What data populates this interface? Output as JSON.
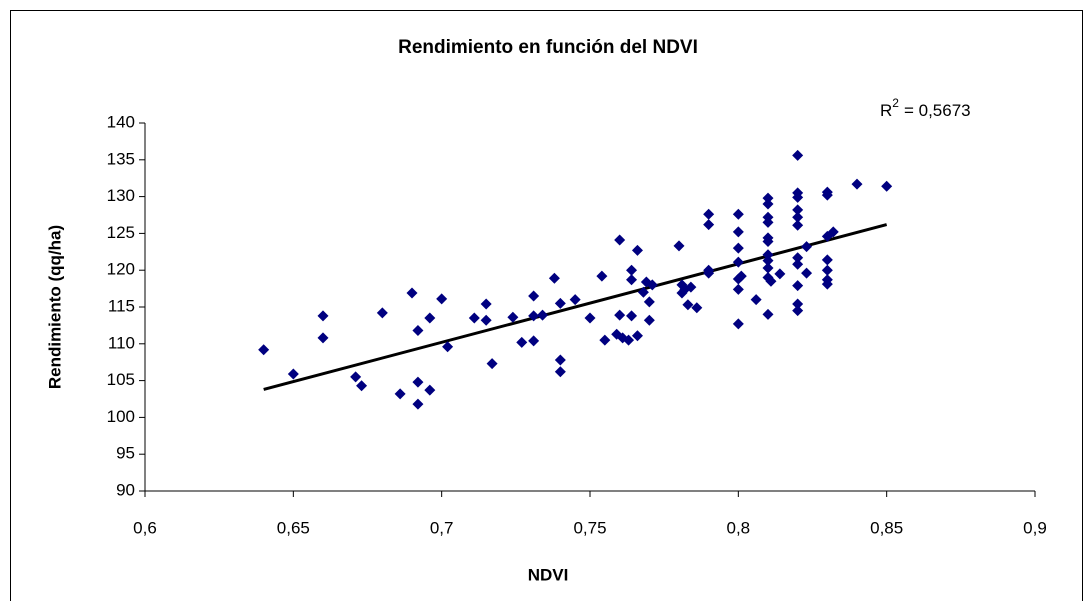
{
  "chart_data": {
    "type": "scatter",
    "title": "Rendimiento en función del NDVI",
    "xlabel": "NDVI",
    "ylabel": "Rendimiento (qq/ha)",
    "annotation": {
      "text": "R",
      "superscript": "2",
      "rest": "= 0,5673"
    },
    "xlim": [
      0.6,
      0.9
    ],
    "xticks": [
      {
        "value": 0.6,
        "label": "0,6"
      },
      {
        "value": 0.65,
        "label": "0,65"
      },
      {
        "value": 0.7,
        "label": "0,7"
      },
      {
        "value": 0.75,
        "label": "0,75"
      },
      {
        "value": 0.8,
        "label": "0,8"
      },
      {
        "value": 0.85,
        "label": "0,85"
      },
      {
        "value": 0.9,
        "label": "0,9"
      }
    ],
    "ylim": [
      90,
      140
    ],
    "yticks": [
      90,
      95,
      100,
      105,
      110,
      115,
      120,
      125,
      130,
      135,
      140
    ],
    "color": "#000080",
    "x": [
      0.64,
      0.65,
      0.66,
      0.66,
      0.671,
      0.673,
      0.68,
      0.686,
      0.69,
      0.692,
      0.692,
      0.692,
      0.696,
      0.696,
      0.7,
      0.702,
      0.711,
      0.715,
      0.715,
      0.717,
      0.724,
      0.727,
      0.731,
      0.731,
      0.731,
      0.734,
      0.738,
      0.74,
      0.74,
      0.74,
      0.745,
      0.75,
      0.754,
      0.755,
      0.759,
      0.76,
      0.76,
      0.761,
      0.763,
      0.764,
      0.764,
      0.764,
      0.766,
      0.766,
      0.768,
      0.769,
      0.77,
      0.77,
      0.771,
      0.78,
      0.781,
      0.781,
      0.782,
      0.783,
      0.784,
      0.786,
      0.79,
      0.79,
      0.79,
      0.79,
      0.8,
      0.8,
      0.8,
      0.8,
      0.8,
      0.801,
      0.8,
      0.8,
      0.806,
      0.81,
      0.81,
      0.81,
      0.81,
      0.81,
      0.81,
      0.81,
      0.81,
      0.81,
      0.81,
      0.81,
      0.811,
      0.814,
      0.82,
      0.82,
      0.82,
      0.82,
      0.82,
      0.82,
      0.82,
      0.82,
      0.82,
      0.82,
      0.82,
      0.823,
      0.823,
      0.83,
      0.83,
      0.83,
      0.83,
      0.83,
      0.83,
      0.83,
      0.832,
      0.84,
      0.85
    ],
    "values": [
      109.2,
      105.9,
      113.8,
      110.8,
      105.5,
      104.3,
      114.2,
      103.2,
      116.9,
      111.8,
      104.8,
      101.8,
      113.5,
      103.7,
      116.1,
      109.6,
      113.5,
      115.4,
      113.2,
      107.3,
      113.6,
      110.2,
      116.5,
      110.4,
      113.8,
      113.9,
      118.9,
      115.5,
      107.8,
      106.2,
      116,
      113.5,
      119.2,
      110.5,
      111.3,
      124.1,
      113.9,
      110.8,
      110.5,
      113.8,
      120,
      118.7,
      111.1,
      122.7,
      117,
      118.4,
      115.7,
      113.2,
      118,
      123.3,
      118,
      116.9,
      117.4,
      115.3,
      117.7,
      114.9,
      127.6,
      126.2,
      120,
      119.6,
      127.6,
      125.2,
      123,
      121.1,
      118.8,
      119.2,
      117.4,
      112.7,
      116,
      129.8,
      129,
      127.2,
      126.5,
      124.4,
      123.9,
      122.1,
      121.3,
      120.3,
      119,
      114,
      118.5,
      119.5,
      135.6,
      130.5,
      129.9,
      128.2,
      127.2,
      126.1,
      121.7,
      120.8,
      117.9,
      115.4,
      114.5,
      123.2,
      119.6,
      130.6,
      130.2,
      124.6,
      121.4,
      120,
      118.7,
      118.1,
      125.2,
      131.7,
      131.4
    ],
    "trendline": {
      "color": "#000000",
      "x": [
        0.64,
        0.85
      ],
      "y": [
        103.8,
        126.2
      ]
    }
  }
}
